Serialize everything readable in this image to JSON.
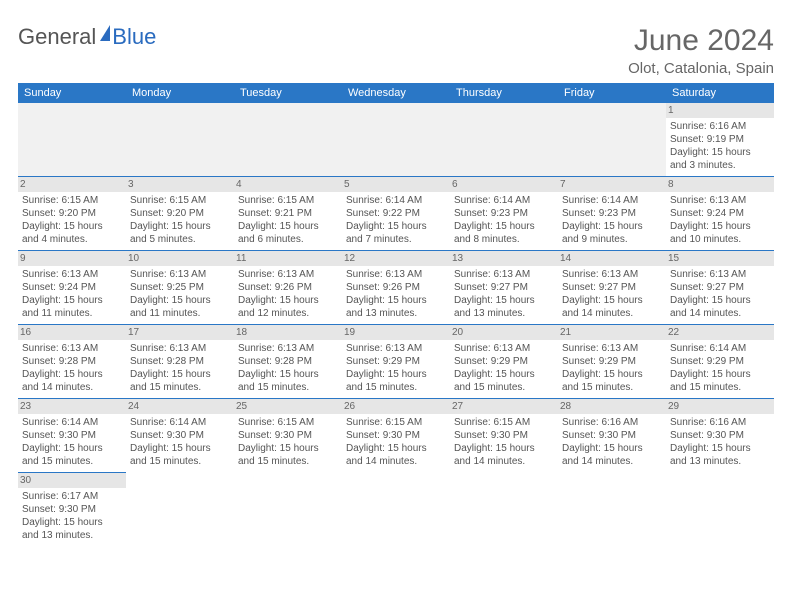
{
  "brand": {
    "part1": "General",
    "part2": "Blue"
  },
  "title": "June 2024",
  "subtitle": "Olot, Catalonia, Spain",
  "dayHeaders": [
    "Sunday",
    "Monday",
    "Tuesday",
    "Wednesday",
    "Thursday",
    "Friday",
    "Saturday"
  ],
  "colors": {
    "headerBg": "#2a77c6",
    "headerText": "#ffffff",
    "dayNumBg": "#e6e6e6",
    "border": "#2a77c6",
    "blankBg": "#f1f1f1",
    "bodyText": "#555555"
  },
  "weeks": [
    [
      {
        "empty": true
      },
      {
        "empty": true
      },
      {
        "empty": true
      },
      {
        "empty": true
      },
      {
        "empty": true
      },
      {
        "empty": true
      },
      {
        "num": "1",
        "sunrise": "Sunrise: 6:16 AM",
        "sunset": "Sunset: 9:19 PM",
        "daylight": "Daylight: 15 hours and 3 minutes."
      }
    ],
    [
      {
        "num": "2",
        "sunrise": "Sunrise: 6:15 AM",
        "sunset": "Sunset: 9:20 PM",
        "daylight": "Daylight: 15 hours and 4 minutes."
      },
      {
        "num": "3",
        "sunrise": "Sunrise: 6:15 AM",
        "sunset": "Sunset: 9:20 PM",
        "daylight": "Daylight: 15 hours and 5 minutes."
      },
      {
        "num": "4",
        "sunrise": "Sunrise: 6:15 AM",
        "sunset": "Sunset: 9:21 PM",
        "daylight": "Daylight: 15 hours and 6 minutes."
      },
      {
        "num": "5",
        "sunrise": "Sunrise: 6:14 AM",
        "sunset": "Sunset: 9:22 PM",
        "daylight": "Daylight: 15 hours and 7 minutes."
      },
      {
        "num": "6",
        "sunrise": "Sunrise: 6:14 AM",
        "sunset": "Sunset: 9:23 PM",
        "daylight": "Daylight: 15 hours and 8 minutes."
      },
      {
        "num": "7",
        "sunrise": "Sunrise: 6:14 AM",
        "sunset": "Sunset: 9:23 PM",
        "daylight": "Daylight: 15 hours and 9 minutes."
      },
      {
        "num": "8",
        "sunrise": "Sunrise: 6:13 AM",
        "sunset": "Sunset: 9:24 PM",
        "daylight": "Daylight: 15 hours and 10 minutes."
      }
    ],
    [
      {
        "num": "9",
        "sunrise": "Sunrise: 6:13 AM",
        "sunset": "Sunset: 9:24 PM",
        "daylight": "Daylight: 15 hours and 11 minutes."
      },
      {
        "num": "10",
        "sunrise": "Sunrise: 6:13 AM",
        "sunset": "Sunset: 9:25 PM",
        "daylight": "Daylight: 15 hours and 11 minutes."
      },
      {
        "num": "11",
        "sunrise": "Sunrise: 6:13 AM",
        "sunset": "Sunset: 9:26 PM",
        "daylight": "Daylight: 15 hours and 12 minutes."
      },
      {
        "num": "12",
        "sunrise": "Sunrise: 6:13 AM",
        "sunset": "Sunset: 9:26 PM",
        "daylight": "Daylight: 15 hours and 13 minutes."
      },
      {
        "num": "13",
        "sunrise": "Sunrise: 6:13 AM",
        "sunset": "Sunset: 9:27 PM",
        "daylight": "Daylight: 15 hours and 13 minutes."
      },
      {
        "num": "14",
        "sunrise": "Sunrise: 6:13 AM",
        "sunset": "Sunset: 9:27 PM",
        "daylight": "Daylight: 15 hours and 14 minutes."
      },
      {
        "num": "15",
        "sunrise": "Sunrise: 6:13 AM",
        "sunset": "Sunset: 9:27 PM",
        "daylight": "Daylight: 15 hours and 14 minutes."
      }
    ],
    [
      {
        "num": "16",
        "sunrise": "Sunrise: 6:13 AM",
        "sunset": "Sunset: 9:28 PM",
        "daylight": "Daylight: 15 hours and 14 minutes."
      },
      {
        "num": "17",
        "sunrise": "Sunrise: 6:13 AM",
        "sunset": "Sunset: 9:28 PM",
        "daylight": "Daylight: 15 hours and 15 minutes."
      },
      {
        "num": "18",
        "sunrise": "Sunrise: 6:13 AM",
        "sunset": "Sunset: 9:28 PM",
        "daylight": "Daylight: 15 hours and 15 minutes."
      },
      {
        "num": "19",
        "sunrise": "Sunrise: 6:13 AM",
        "sunset": "Sunset: 9:29 PM",
        "daylight": "Daylight: 15 hours and 15 minutes."
      },
      {
        "num": "20",
        "sunrise": "Sunrise: 6:13 AM",
        "sunset": "Sunset: 9:29 PM",
        "daylight": "Daylight: 15 hours and 15 minutes."
      },
      {
        "num": "21",
        "sunrise": "Sunrise: 6:13 AM",
        "sunset": "Sunset: 9:29 PM",
        "daylight": "Daylight: 15 hours and 15 minutes."
      },
      {
        "num": "22",
        "sunrise": "Sunrise: 6:14 AM",
        "sunset": "Sunset: 9:29 PM",
        "daylight": "Daylight: 15 hours and 15 minutes."
      }
    ],
    [
      {
        "num": "23",
        "sunrise": "Sunrise: 6:14 AM",
        "sunset": "Sunset: 9:30 PM",
        "daylight": "Daylight: 15 hours and 15 minutes."
      },
      {
        "num": "24",
        "sunrise": "Sunrise: 6:14 AM",
        "sunset": "Sunset: 9:30 PM",
        "daylight": "Daylight: 15 hours and 15 minutes."
      },
      {
        "num": "25",
        "sunrise": "Sunrise: 6:15 AM",
        "sunset": "Sunset: 9:30 PM",
        "daylight": "Daylight: 15 hours and 15 minutes."
      },
      {
        "num": "26",
        "sunrise": "Sunrise: 6:15 AM",
        "sunset": "Sunset: 9:30 PM",
        "daylight": "Daylight: 15 hours and 14 minutes."
      },
      {
        "num": "27",
        "sunrise": "Sunrise: 6:15 AM",
        "sunset": "Sunset: 9:30 PM",
        "daylight": "Daylight: 15 hours and 14 minutes."
      },
      {
        "num": "28",
        "sunrise": "Sunrise: 6:16 AM",
        "sunset": "Sunset: 9:30 PM",
        "daylight": "Daylight: 15 hours and 14 minutes."
      },
      {
        "num": "29",
        "sunrise": "Sunrise: 6:16 AM",
        "sunset": "Sunset: 9:30 PM",
        "daylight": "Daylight: 15 hours and 13 minutes."
      }
    ],
    [
      {
        "num": "30",
        "sunrise": "Sunrise: 6:17 AM",
        "sunset": "Sunset: 9:30 PM",
        "daylight": "Daylight: 15 hours and 13 minutes."
      },
      {
        "trailing": true
      },
      {
        "trailing": true
      },
      {
        "trailing": true
      },
      {
        "trailing": true
      },
      {
        "trailing": true
      },
      {
        "trailing": true
      }
    ]
  ]
}
